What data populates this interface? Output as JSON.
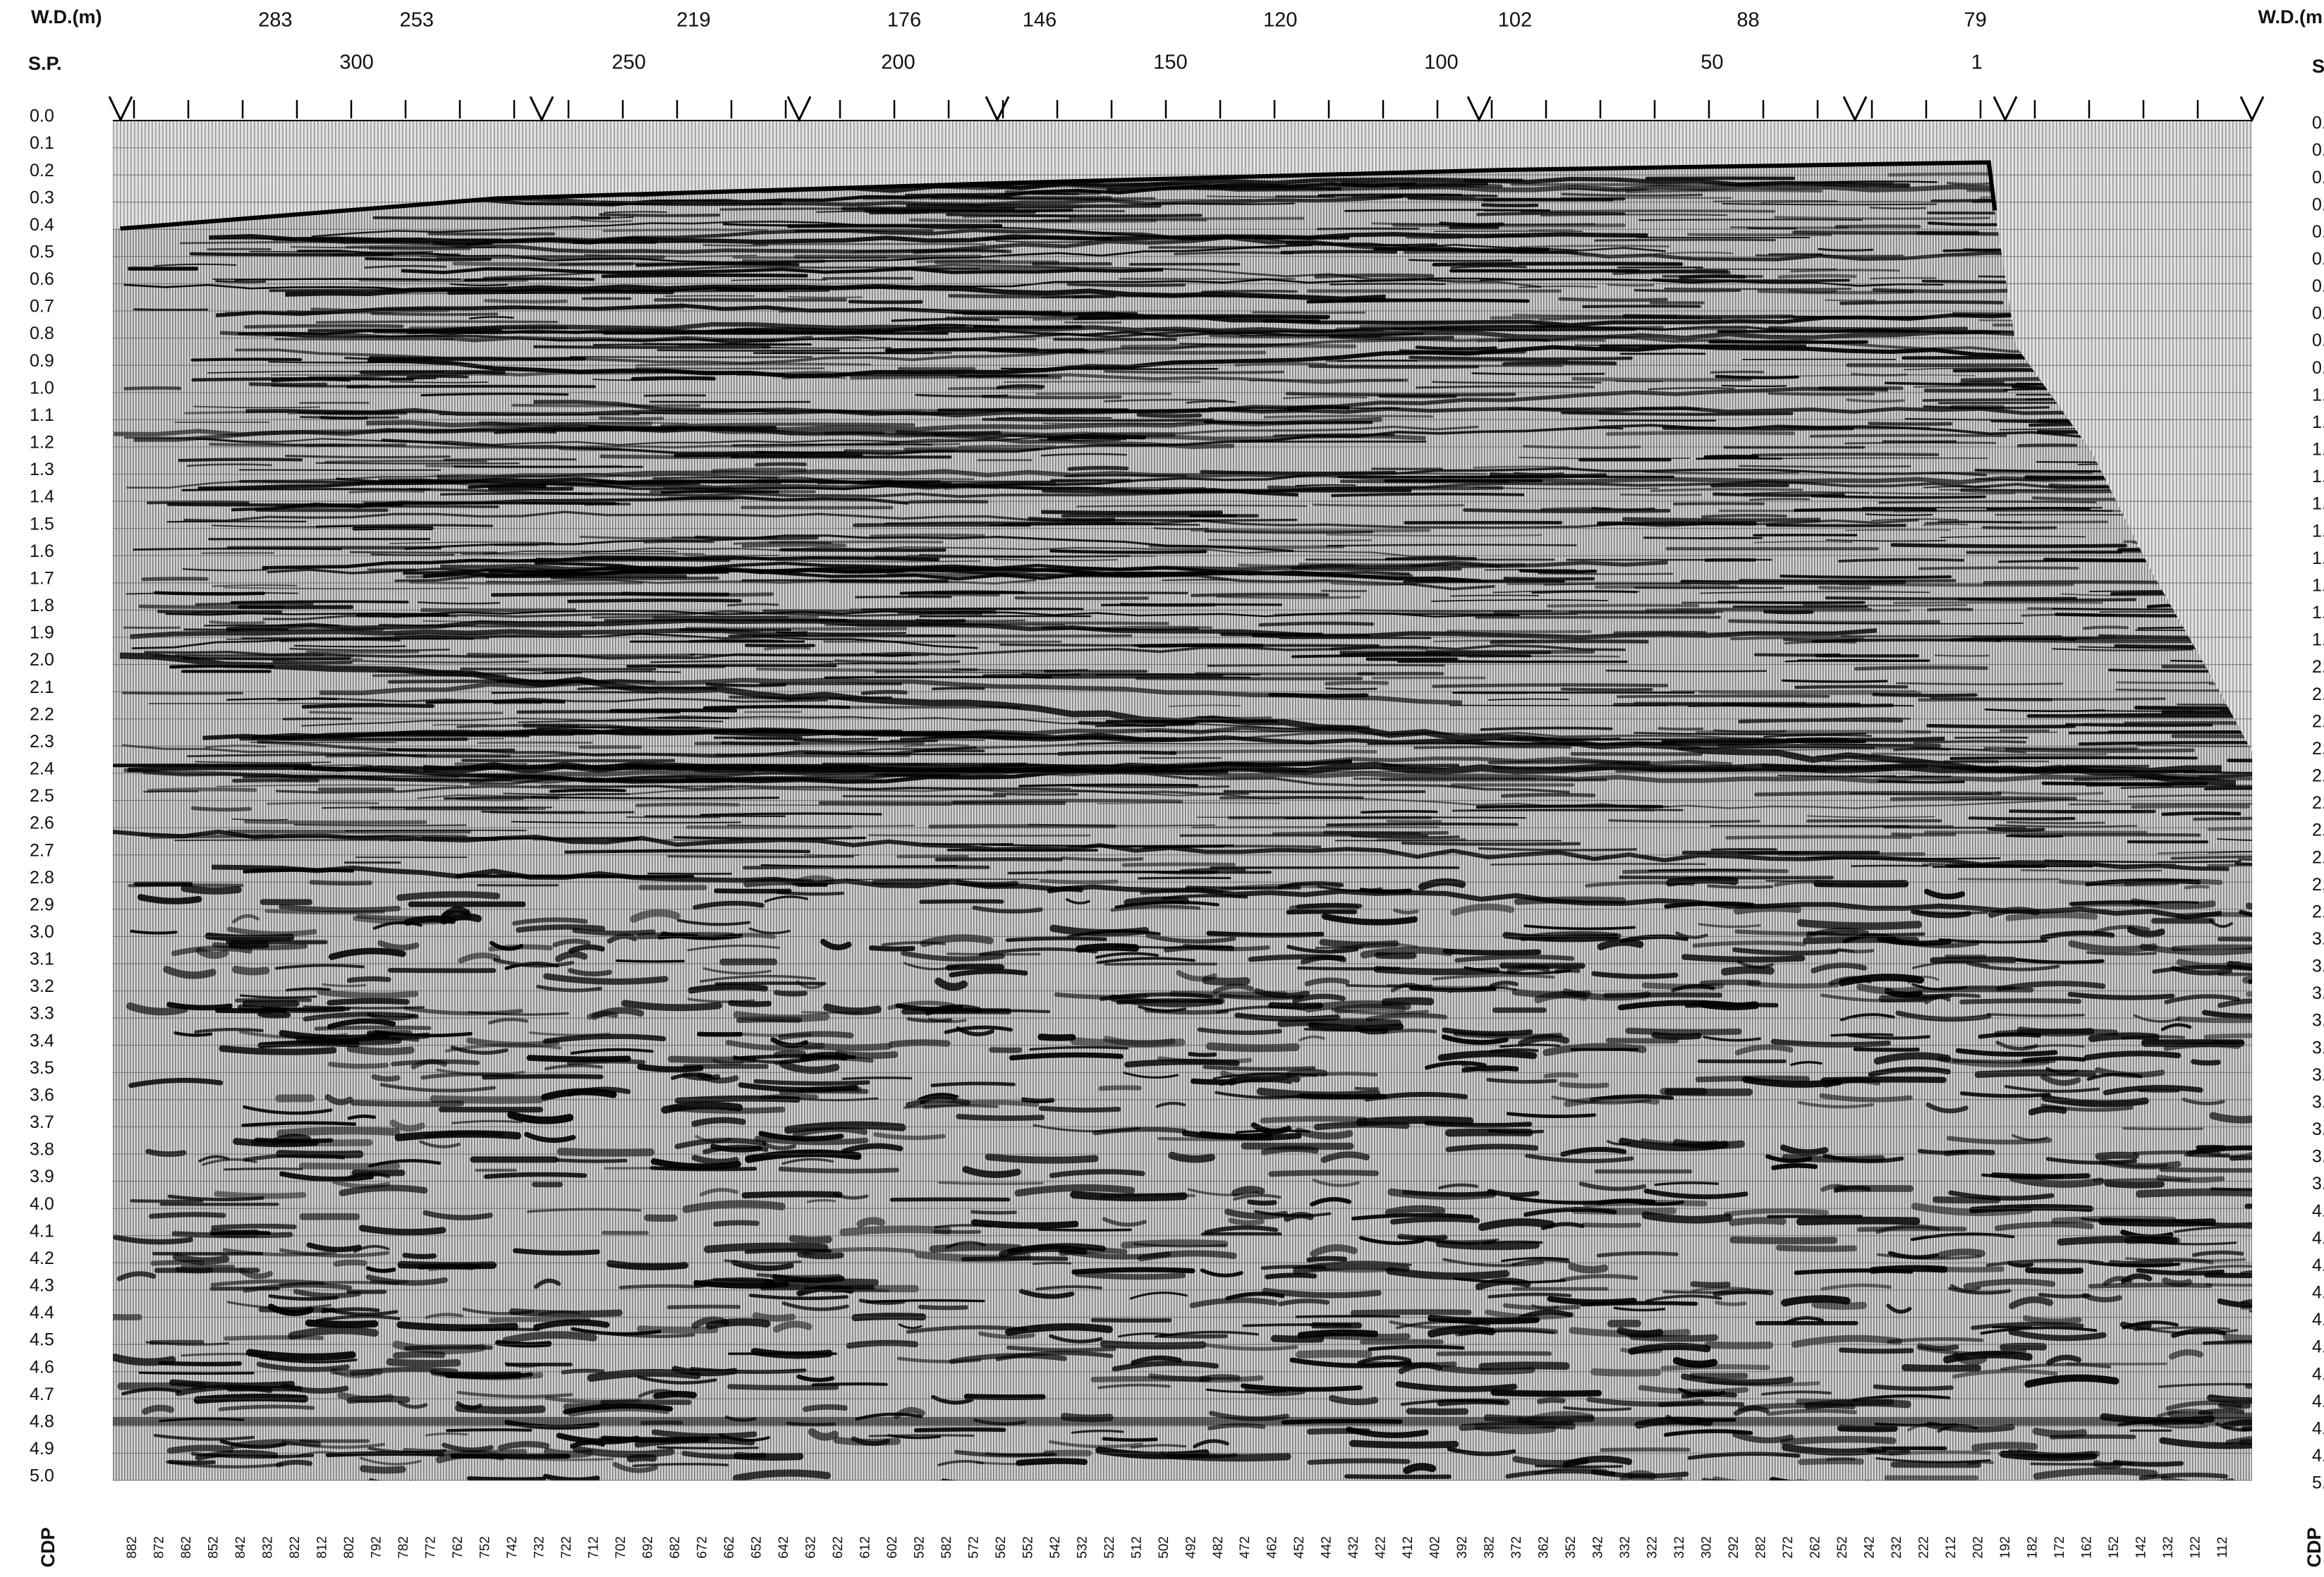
{
  "header": {
    "wd_label": "W.D.(m)",
    "sp_label": "S.P.",
    "wd_label_right": "W.D.(m",
    "cdp_label": "CDP"
  },
  "wd_values": [
    "283",
    "253",
    "219",
    "176",
    "146",
    "120",
    "102",
    "88",
    "79"
  ],
  "sp_values": [
    "300",
    "250",
    "200",
    "150",
    "100",
    "50",
    "1"
  ],
  "time_labels": [
    "0.0",
    "0.1",
    "0.2",
    "0.3",
    "0.4",
    "0.5",
    "0.6",
    "0.7",
    "0.8",
    "0.9",
    "1.0",
    "1.1",
    "1.2",
    "1.3",
    "1.4",
    "1.5",
    "1.6",
    "1.7",
    "1.8",
    "1.9",
    "2.0",
    "2.1",
    "2.2",
    "2.3",
    "2.4",
    "2.5",
    "2.6",
    "2.7",
    "2.8",
    "2.9",
    "3.0",
    "3.1",
    "3.2",
    "3.3",
    "3.4",
    "3.5",
    "3.6",
    "3.7",
    "3.8",
    "3.9",
    "4.0",
    "4.1",
    "4.2",
    "4.3",
    "4.4",
    "4.5",
    "4.6",
    "4.7",
    "4.8",
    "4.9",
    "5.0"
  ],
  "cdp_values": [
    "882",
    "872",
    "862",
    "852",
    "842",
    "832",
    "822",
    "812",
    "802",
    "792",
    "782",
    "772",
    "762",
    "752",
    "742",
    "732",
    "722",
    "712",
    "702",
    "692",
    "682",
    "672",
    "662",
    "652",
    "642",
    "632",
    "622",
    "612",
    "602",
    "592",
    "582",
    "572",
    "562",
    "552",
    "542",
    "532",
    "522",
    "512",
    "502",
    "492",
    "482",
    "472",
    "462",
    "452",
    "442",
    "432",
    "422",
    "412",
    "402",
    "392",
    "382",
    "372",
    "362",
    "352",
    "342",
    "332",
    "322",
    "312",
    "302",
    "292",
    "282",
    "272",
    "262",
    "252",
    "242",
    "232",
    "222",
    "212",
    "202",
    "192",
    "182",
    "172",
    "162",
    "152",
    "142",
    "132",
    "122",
    "112"
  ]
}
